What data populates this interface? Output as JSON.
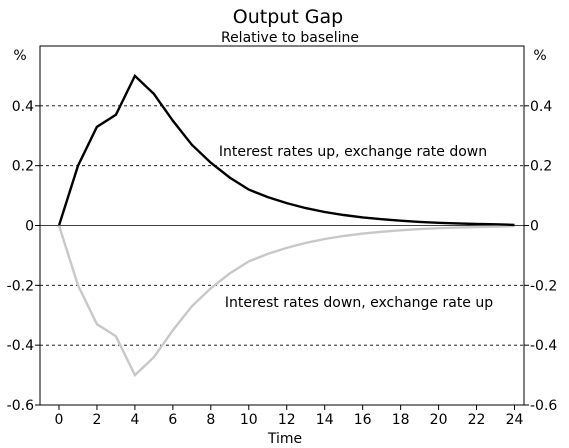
{
  "chart_data": {
    "type": "line",
    "title": "Output Gap",
    "subtitle": "Relative to baseline",
    "xlabel": "Time",
    "ylabel_left": "%",
    "ylabel_right": "%",
    "xlim": [
      -1,
      24.5
    ],
    "ylim": [
      -0.6,
      0.6
    ],
    "x_ticks": [
      0,
      2,
      4,
      6,
      8,
      10,
      12,
      14,
      16,
      18,
      20,
      22,
      24
    ],
    "y_ticks": [
      -0.6,
      -0.4,
      -0.2,
      0,
      0.2,
      0.4
    ],
    "y_tick_labels": [
      "-0.6",
      "-0.4",
      "-0.2",
      "0",
      "0.2",
      "0.4"
    ],
    "grid": "horizontal dashed",
    "series": [
      {
        "name": "Interest rates up, exchange rate down",
        "color": "#000000",
        "x": [
          0,
          1,
          2,
          3,
          4,
          5,
          6,
          7,
          8,
          9,
          10,
          11,
          12,
          13,
          14,
          15,
          16,
          17,
          18,
          19,
          20,
          21,
          22,
          23,
          24
        ],
        "values": [
          0,
          0.2,
          0.33,
          0.37,
          0.5,
          0.44,
          0.35,
          0.27,
          0.21,
          0.16,
          0.12,
          0.095,
          0.075,
          0.058,
          0.045,
          0.035,
          0.027,
          0.021,
          0.016,
          0.012,
          0.009,
          0.007,
          0.005,
          0.004,
          0.002
        ]
      },
      {
        "name": "Interest rates down, exchange rate up",
        "color": "#c8c8c8",
        "x": [
          0,
          1,
          2,
          3,
          4,
          5,
          6,
          7,
          8,
          9,
          10,
          11,
          12,
          13,
          14,
          15,
          16,
          17,
          18,
          19,
          20,
          21,
          22,
          23,
          24
        ],
        "values": [
          0,
          -0.2,
          -0.33,
          -0.37,
          -0.5,
          -0.44,
          -0.35,
          -0.27,
          -0.21,
          -0.16,
          -0.12,
          -0.095,
          -0.075,
          -0.058,
          -0.045,
          -0.035,
          -0.027,
          -0.021,
          -0.016,
          -0.012,
          -0.009,
          -0.007,
          -0.005,
          -0.004,
          -0.002
        ]
      }
    ],
    "annotations": [
      {
        "text": "Interest rates up, exchange rate down",
        "x": 13.8,
        "y": 0.25
      },
      {
        "text": "Interest rates down, exchange rate up",
        "x": 14.2,
        "y": -0.25
      }
    ]
  }
}
